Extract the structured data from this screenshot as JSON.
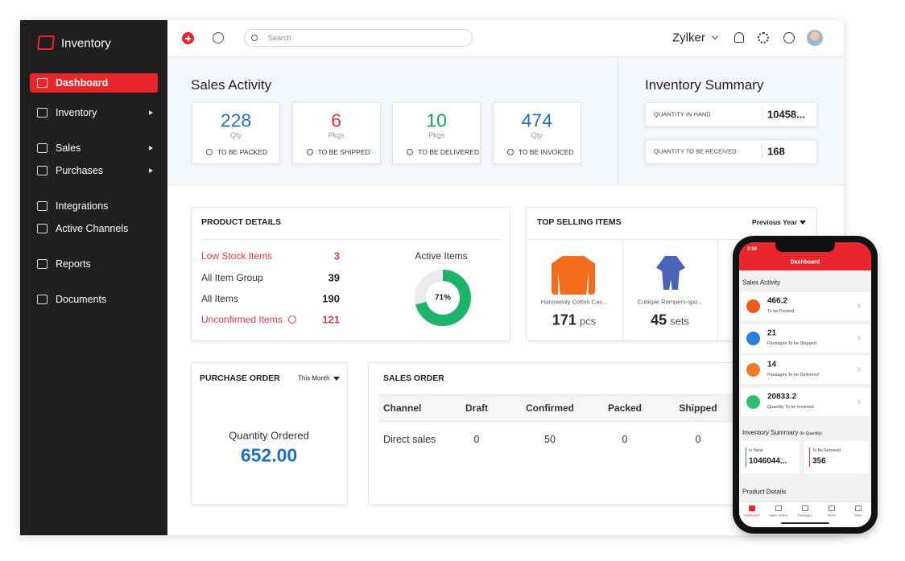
{
  "app": {
    "name": "Inventory"
  },
  "sidebar": [
    "Dashboard",
    "Inventory",
    "Sales",
    "Purchases",
    "Integrations",
    "Active Channels",
    "Reports",
    "Documents"
  ],
  "topbar": {
    "search_placeholder": "Search",
    "org": "Zylker"
  },
  "sales_activity": {
    "title": "Sales Activity",
    "cards": [
      {
        "value": 228,
        "unit": "Qty",
        "label": "TO BE PACKED"
      },
      {
        "value": 6,
        "unit": "Pkgs",
        "label": "TO BE SHIPPED"
      },
      {
        "value": 10,
        "unit": "Pkgs",
        "label": "TO BE DELIVERED"
      },
      {
        "value": 474,
        "unit": "Qty",
        "label": "TO BE INVOICED"
      }
    ]
  },
  "inventory_summary": {
    "title": "Inventory Summary",
    "rows": [
      {
        "label": "QUANTITY IN HAND",
        "value": "10458..."
      },
      {
        "label": "QUANTITY TO BE RECEIVED",
        "value": 168
      }
    ]
  },
  "product_details": {
    "title": "PRODUCT DETAILS",
    "rows": [
      {
        "label": "Low Stock Items",
        "value": 3
      },
      {
        "label": "All Item Group",
        "value": 39
      },
      {
        "label": "All Items",
        "value": 190
      },
      {
        "label": "Unconfirmed Items",
        "value": 121
      }
    ],
    "active_items": {
      "title": "Active Items",
      "percent": 71,
      "percent_label": "71%"
    }
  },
  "top_selling": {
    "title": "TOP SELLING ITEMS",
    "filter": "Previous Year",
    "items": [
      {
        "name": "Hanswooly Cotton Cas...",
        "qty": 171,
        "unit": "pcs"
      },
      {
        "name": "Cutiepie Rompers-spo...",
        "qty": 45,
        "unit": "sets"
      }
    ]
  },
  "purchase_order": {
    "title": "PURCHASE ORDER",
    "filter": "This Month",
    "label": "Quantity Ordered",
    "value": "652.00"
  },
  "sales_order": {
    "title": "SALES ORDER",
    "columns": [
      "Channel",
      "Draft",
      "Confirmed",
      "Packed",
      "Shipped"
    ],
    "rows": [
      [
        "Direct sales",
        0,
        50,
        0,
        0
      ]
    ]
  },
  "phone": {
    "time": "2:59",
    "title": "Dashboard",
    "sales_activity_title": "Sales Activity",
    "items": [
      {
        "value": 466.2,
        "label": "To be Packed"
      },
      {
        "value": 21,
        "label": "Packages To be Shipped"
      },
      {
        "value": 14,
        "label": "Packages To be Delivered"
      },
      {
        "value": 20833.2,
        "label": "Quantity To be Invoiced"
      }
    ],
    "inventory_title": "Inventory Summary",
    "inventory_note": "(In Quantity)",
    "summary": [
      {
        "label": "In Hand",
        "value": "1046044..."
      },
      {
        "label": "To Be Received",
        "value": 356
      }
    ],
    "product_details": "Product Details",
    "tabs": [
      "Dashboard",
      "Sales Orders",
      "Packages",
      "Items",
      "More"
    ]
  }
}
